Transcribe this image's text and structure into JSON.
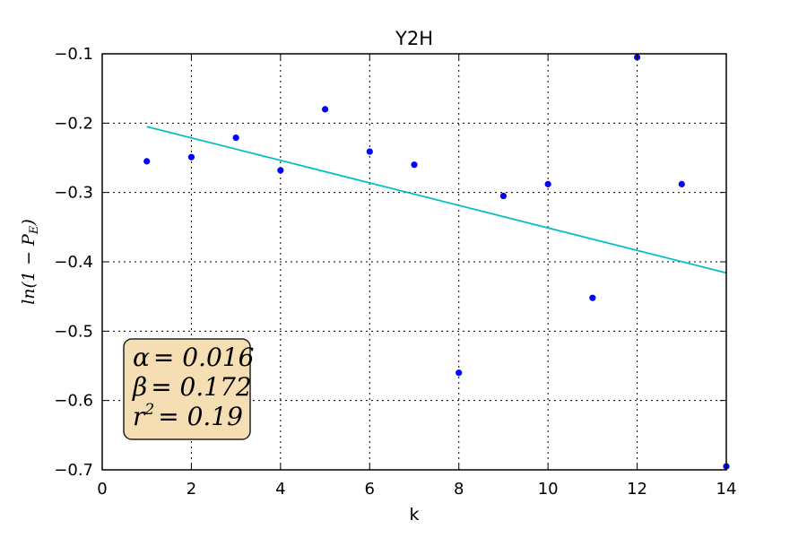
{
  "chart_data": {
    "type": "scatter",
    "title": "Y2H",
    "xlabel": "k",
    "ylabel": "ln(1 − P",
    "ylabel_sub": "E",
    "ylabel_close": ")",
    "xlim": [
      0,
      14
    ],
    "ylim": [
      -0.7,
      -0.1
    ],
    "x_ticks": [
      0,
      2,
      4,
      6,
      8,
      10,
      12,
      14
    ],
    "x_tick_labels": [
      "0",
      "2",
      "4",
      "6",
      "8",
      "10",
      "12",
      "14"
    ],
    "y_ticks": [
      -0.7,
      -0.6,
      -0.5,
      -0.4,
      -0.3,
      -0.2,
      -0.1
    ],
    "y_tick_labels": [
      "−0.7",
      "−0.6",
      "−0.5",
      "−0.4",
      "−0.3",
      "−0.2",
      "−0.1"
    ],
    "grid": true,
    "points": {
      "x": [
        1,
        2,
        3,
        4,
        5,
        6,
        7,
        8,
        9,
        10,
        11,
        12,
        13,
        14
      ],
      "y": [
        -0.255,
        -0.249,
        -0.221,
        -0.268,
        -0.18,
        -0.241,
        -0.26,
        -0.56,
        -0.305,
        -0.288,
        -0.452,
        -0.105,
        -0.288,
        -0.695
      ],
      "color": "#0000ff"
    },
    "fit_line": {
      "x": [
        1,
        14
      ],
      "y": [
        -0.205,
        -0.416
      ],
      "color": "#00bfbf"
    },
    "annotation": {
      "lines": [
        {
          "symbol": "α",
          "value": "= 0.016"
        },
        {
          "symbol": "β",
          "value": "= 0.172"
        },
        {
          "symbol": "r",
          "sup": "2",
          "value": "= 0.19"
        }
      ],
      "background": "#f5deb3",
      "border": "#222222",
      "placement": "bottom-left"
    }
  }
}
